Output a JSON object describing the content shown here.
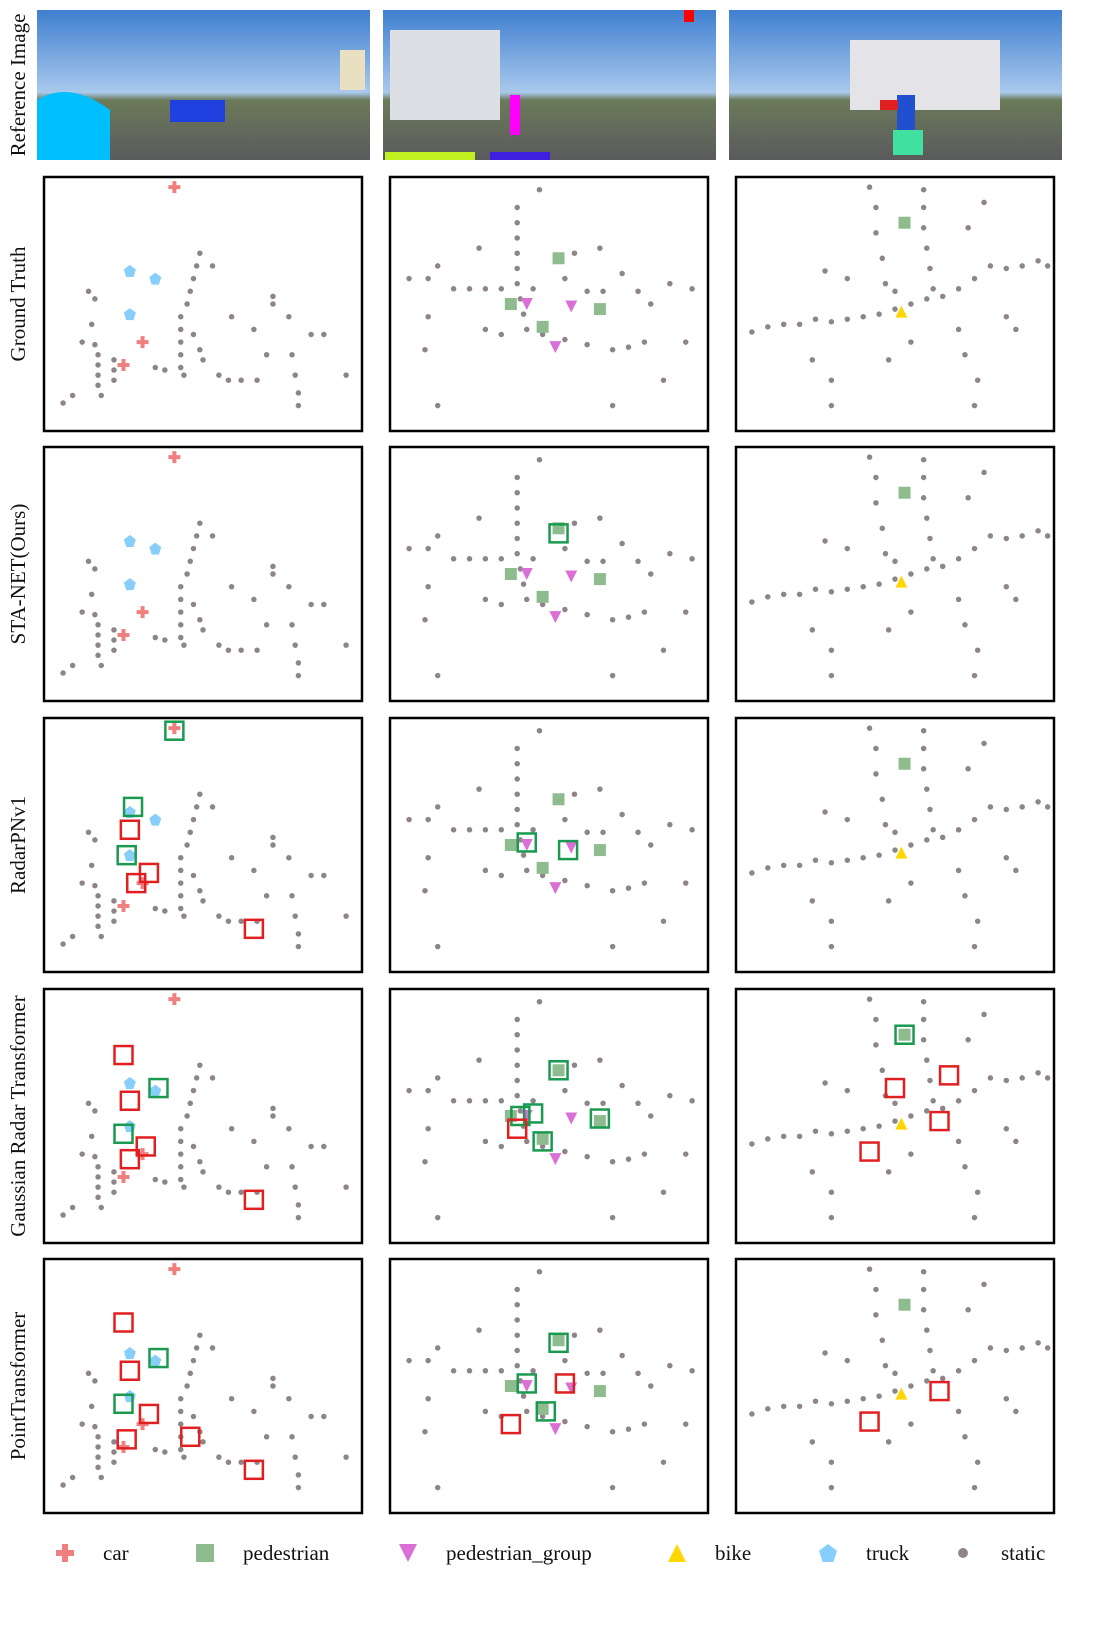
{
  "row_labels": [
    "Reference Image",
    "Ground Truth",
    "STA-NET(Ours)",
    "RadarPNv1",
    "Gaussian Radar Transformer",
    "PointTransformer"
  ],
  "legend": [
    {
      "label": "car",
      "color": "#f08080"
    },
    {
      "label": "pedestrian",
      "color": "#8fbc8f"
    },
    {
      "label": "pedestrian_group",
      "color": "#da70d6"
    },
    {
      "label": "bike",
      "color": "#ffd700"
    },
    {
      "label": "truck",
      "color": "#87cefa"
    },
    {
      "label": "static",
      "color": "#8f8489"
    }
  ],
  "columns": [
    {
      "static": [
        [
          17,
          70
        ],
        [
          17,
          74
        ],
        [
          17,
          78
        ],
        [
          17,
          82
        ],
        [
          18,
          86
        ],
        [
          16,
          66
        ],
        [
          15,
          58
        ],
        [
          16,
          48
        ],
        [
          22,
          72
        ],
        [
          22,
          76
        ],
        [
          22,
          80
        ],
        [
          43,
          55
        ],
        [
          43,
          60
        ],
        [
          43,
          65
        ],
        [
          43,
          70
        ],
        [
          43,
          75
        ],
        [
          44,
          78
        ],
        [
          45,
          50
        ],
        [
          46,
          45
        ],
        [
          47,
          40
        ],
        [
          48,
          35
        ],
        [
          49,
          30
        ],
        [
          47,
          62
        ],
        [
          49,
          68
        ],
        [
          50,
          72
        ],
        [
          6,
          89
        ],
        [
          9,
          86
        ],
        [
          14,
          45
        ],
        [
          12,
          65
        ],
        [
          35,
          75
        ],
        [
          38,
          76
        ],
        [
          55,
          78
        ],
        [
          58,
          80
        ],
        [
          62,
          80
        ],
        [
          67,
          80
        ],
        [
          70,
          70
        ],
        [
          72,
          50
        ],
        [
          77,
          55
        ],
        [
          78,
          70
        ],
        [
          79,
          78
        ],
        [
          80,
          85
        ],
        [
          80,
          90
        ],
        [
          72,
          47
        ],
        [
          84,
          62
        ],
        [
          95,
          78
        ],
        [
          88,
          62
        ],
        [
          66,
          60
        ],
        [
          53,
          35
        ],
        [
          59,
          55
        ]
      ],
      "objects": [
        {
          "class": 0,
          "x": 41,
          "y": 4
        },
        {
          "class": 4,
          "x": 27,
          "y": 37
        },
        {
          "class": 4,
          "x": 35,
          "y": 40
        },
        {
          "class": 4,
          "x": 27,
          "y": 54
        },
        {
          "class": 0,
          "x": 25,
          "y": 74
        },
        {
          "class": 0,
          "x": 31,
          "y": 65
        }
      ]
    },
    {
      "static": [
        [
          40,
          12
        ],
        [
          40,
          18
        ],
        [
          40,
          24
        ],
        [
          40,
          30
        ],
        [
          40,
          36
        ],
        [
          40,
          42
        ],
        [
          41,
          48
        ],
        [
          42,
          54
        ],
        [
          43,
          60
        ],
        [
          6,
          40
        ],
        [
          12,
          40
        ],
        [
          15,
          35
        ],
        [
          20,
          44
        ],
        [
          25,
          44
        ],
        [
          30,
          44
        ],
        [
          35,
          44
        ],
        [
          45,
          44
        ],
        [
          55,
          40
        ],
        [
          62,
          45
        ],
        [
          67,
          45
        ],
        [
          73,
          38
        ],
        [
          78,
          45
        ],
        [
          82,
          50
        ],
        [
          88,
          42
        ],
        [
          95,
          44
        ],
        [
          48,
          62
        ],
        [
          55,
          64
        ],
        [
          62,
          66
        ],
        [
          70,
          68
        ],
        [
          75,
          67
        ],
        [
          80,
          65
        ],
        [
          12,
          55
        ],
        [
          11,
          68
        ],
        [
          15,
          90
        ],
        [
          30,
          60
        ],
        [
          35,
          62
        ],
        [
          47,
          5
        ],
        [
          58,
          30
        ],
        [
          66,
          28
        ],
        [
          28,
          28
        ],
        [
          86,
          80
        ],
        [
          70,
          90
        ],
        [
          93,
          65
        ]
      ],
      "objects": [
        {
          "class": 1,
          "x": 53,
          "y": 32
        },
        {
          "class": 1,
          "x": 38,
          "y": 50
        },
        {
          "class": 1,
          "x": 66,
          "y": 52
        },
        {
          "class": 1,
          "x": 48,
          "y": 59
        },
        {
          "class": 2,
          "x": 43,
          "y": 50
        },
        {
          "class": 2,
          "x": 57,
          "y": 51
        },
        {
          "class": 2,
          "x": 52,
          "y": 67
        }
      ]
    },
    {
      "static": [
        [
          59,
          5
        ],
        [
          59,
          12
        ],
        [
          59,
          20
        ],
        [
          60,
          28
        ],
        [
          61,
          36
        ],
        [
          62,
          44
        ],
        [
          42,
          4
        ],
        [
          44,
          12
        ],
        [
          44,
          22
        ],
        [
          46,
          32
        ],
        [
          47,
          42
        ],
        [
          5,
          61
        ],
        [
          10,
          59
        ],
        [
          15,
          58
        ],
        [
          20,
          58
        ],
        [
          25,
          56
        ],
        [
          30,
          57
        ],
        [
          35,
          56
        ],
        [
          40,
          55
        ],
        [
          45,
          54
        ],
        [
          50,
          52
        ],
        [
          55,
          50
        ],
        [
          60,
          48
        ],
        [
          65,
          47
        ],
        [
          70,
          44
        ],
        [
          75,
          40
        ],
        [
          80,
          35
        ],
        [
          85,
          36
        ],
        [
          90,
          35
        ],
        [
          95,
          33
        ],
        [
          98,
          35
        ],
        [
          28,
          37
        ],
        [
          35,
          40
        ],
        [
          50,
          45
        ],
        [
          73,
          20
        ],
        [
          78,
          10
        ],
        [
          70,
          60
        ],
        [
          72,
          70
        ],
        [
          76,
          80
        ],
        [
          75,
          90
        ],
        [
          55,
          65
        ],
        [
          30,
          80
        ],
        [
          24,
          72
        ],
        [
          85,
          55
        ],
        [
          88,
          60
        ],
        [
          48,
          72
        ],
        [
          30,
          90
        ]
      ],
      "objects": [
        {
          "class": 1,
          "x": 53,
          "y": 18
        },
        {
          "class": 3,
          "x": 52,
          "y": 53
        }
      ]
    }
  ],
  "box_colors": [
    "#e02020",
    "#1a9a50"
  ],
  "boxes": [
    [
      [],
      [],
      []
    ],
    [
      [],
      [
        {
          "c": 1,
          "x": 53,
          "y": 34
        }
      ],
      []
    ],
    [
      [
        {
          "c": 1,
          "x": 41,
          "y": 5
        },
        {
          "c": 1,
          "x": 28,
          "y": 35
        },
        {
          "c": 0,
          "x": 27,
          "y": 44
        },
        {
          "c": 1,
          "x": 26,
          "y": 54
        },
        {
          "c": 0,
          "x": 29,
          "y": 65
        },
        {
          "c": 0,
          "x": 33,
          "y": 61
        },
        {
          "c": 0,
          "x": 66,
          "y": 83
        }
      ],
      [
        {
          "c": 1,
          "x": 43,
          "y": 49
        },
        {
          "c": 1,
          "x": 56,
          "y": 52
        }
      ],
      []
    ],
    [
      [
        {
          "c": 0,
          "x": 25,
          "y": 26
        },
        {
          "c": 0,
          "x": 27,
          "y": 44
        },
        {
          "c": 1,
          "x": 36,
          "y": 39
        },
        {
          "c": 1,
          "x": 25,
          "y": 57
        },
        {
          "c": 0,
          "x": 27,
          "y": 67
        },
        {
          "c": 0,
          "x": 32,
          "y": 62
        },
        {
          "c": 0,
          "x": 66,
          "y": 83
        }
      ],
      [
        {
          "c": 1,
          "x": 53,
          "y": 32
        },
        {
          "c": 1,
          "x": 41,
          "y": 50
        },
        {
          "c": 1,
          "x": 45,
          "y": 49
        },
        {
          "c": 0,
          "x": 40,
          "y": 55
        },
        {
          "c": 1,
          "x": 48,
          "y": 60
        },
        {
          "c": 1,
          "x": 66,
          "y": 51
        }
      ],
      [
        {
          "c": 1,
          "x": 53,
          "y": 18
        },
        {
          "c": 0,
          "x": 50,
          "y": 39
        },
        {
          "c": 0,
          "x": 67,
          "y": 34
        },
        {
          "c": 0,
          "x": 64,
          "y": 52
        },
        {
          "c": 0,
          "x": 42,
          "y": 64
        }
      ]
    ],
    [
      [
        {
          "c": 0,
          "x": 25,
          "y": 25
        },
        {
          "c": 0,
          "x": 27,
          "y": 44
        },
        {
          "c": 1,
          "x": 36,
          "y": 39
        },
        {
          "c": 1,
          "x": 25,
          "y": 57
        },
        {
          "c": 0,
          "x": 33,
          "y": 61
        },
        {
          "c": 0,
          "x": 26,
          "y": 71
        },
        {
          "c": 0,
          "x": 46,
          "y": 70
        },
        {
          "c": 0,
          "x": 66,
          "y": 83
        }
      ],
      [
        {
          "c": 1,
          "x": 53,
          "y": 33
        },
        {
          "c": 1,
          "x": 43,
          "y": 49
        },
        {
          "c": 0,
          "x": 55,
          "y": 49
        },
        {
          "c": 1,
          "x": 49,
          "y": 60
        },
        {
          "c": 0,
          "x": 38,
          "y": 65
        }
      ],
      [
        {
          "c": 0,
          "x": 64,
          "y": 52
        },
        {
          "c": 0,
          "x": 42,
          "y": 64
        }
      ]
    ]
  ]
}
